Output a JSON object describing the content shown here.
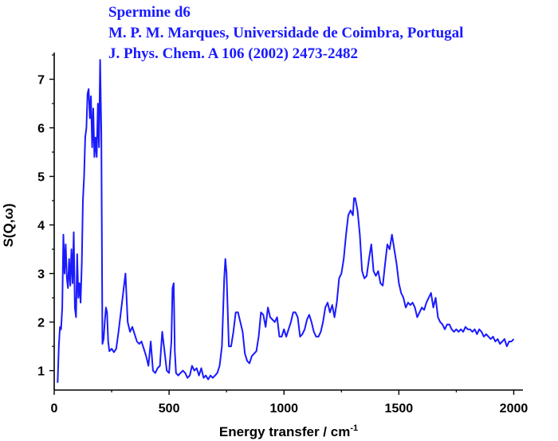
{
  "chart_data": {
    "type": "line",
    "title": [
      "Spermine d6",
      "M. P. M. Marques, Universidade de Coimbra, Portugal",
      "J. Phys. Chem. A 106 (2002) 2473-2482"
    ],
    "xlabel": "Energy transfer / cm",
    "xlabel_sup": "-1",
    "ylabel": "S(Q,ω)",
    "xlim": [
      0,
      2040
    ],
    "ylim": [
      0.6,
      7.55
    ],
    "xticks": [
      0,
      500,
      1000,
      1500,
      2000
    ],
    "yticks": [
      1,
      2,
      3,
      4,
      5,
      6,
      7
    ],
    "grid": false,
    "line_color": "#1a1aff",
    "series": [
      {
        "x": [
          15,
          20,
          25,
          30,
          35,
          40,
          45,
          50,
          55,
          60,
          65,
          70,
          75,
          80,
          85,
          90,
          95,
          100,
          105,
          110,
          115,
          120,
          125,
          130,
          135,
          140,
          145,
          150,
          155,
          160,
          165,
          170,
          175,
          180,
          185,
          190,
          195,
          200,
          205,
          210,
          215,
          220,
          225,
          230,
          235,
          240,
          250,
          260,
          270,
          280,
          290,
          300,
          310,
          315,
          320,
          330,
          340,
          350,
          360,
          370,
          380,
          390,
          400,
          410,
          420,
          430,
          440,
          450,
          460,
          470,
          480,
          490,
          500,
          510,
          515,
          520,
          525,
          530,
          540,
          550,
          560,
          570,
          580,
          590,
          600,
          610,
          620,
          630,
          640,
          650,
          660,
          670,
          680,
          690,
          700,
          710,
          720,
          730,
          740,
          745,
          750,
          760,
          770,
          780,
          790,
          800,
          810,
          820,
          830,
          840,
          850,
          860,
          870,
          880,
          890,
          900,
          910,
          920,
          930,
          940,
          950,
          960,
          970,
          980,
          990,
          1000,
          1010,
          1020,
          1030,
          1040,
          1050,
          1060,
          1070,
          1080,
          1090,
          1100,
          1110,
          1120,
          1130,
          1140,
          1150,
          1160,
          1170,
          1180,
          1190,
          1200,
          1210,
          1220,
          1230,
          1240,
          1250,
          1260,
          1270,
          1280,
          1290,
          1300,
          1305,
          1310,
          1320,
          1330,
          1340,
          1350,
          1360,
          1370,
          1380,
          1390,
          1400,
          1410,
          1420,
          1430,
          1440,
          1450,
          1460,
          1470,
          1480,
          1490,
          1500,
          1510,
          1520,
          1530,
          1540,
          1550,
          1560,
          1570,
          1580,
          1590,
          1600,
          1610,
          1620,
          1630,
          1640,
          1650,
          1660,
          1670,
          1680,
          1690,
          1700,
          1710,
          1720,
          1730,
          1740,
          1750,
          1760,
          1770,
          1780,
          1790,
          1800,
          1810,
          1820,
          1830,
          1840,
          1850,
          1860,
          1870,
          1880,
          1890,
          1900,
          1910,
          1920,
          1930,
          1940,
          1950,
          1960,
          1970,
          1980,
          1990,
          2000
        ],
        "y": [
          0.75,
          1.5,
          1.9,
          1.85,
          2.3,
          3.8,
          3.0,
          3.6,
          2.9,
          2.7,
          3.3,
          2.75,
          3.5,
          2.8,
          3.85,
          2.3,
          2.1,
          3.4,
          2.5,
          2.8,
          2.4,
          3.2,
          4.5,
          5.0,
          5.8,
          6.0,
          6.7,
          6.8,
          6.2,
          6.65,
          5.6,
          6.4,
          5.4,
          5.8,
          5.4,
          6.5,
          5.6,
          7.4,
          5.9,
          1.55,
          1.65,
          2.0,
          2.3,
          2.2,
          1.6,
          1.4,
          1.45,
          1.38,
          1.45,
          1.8,
          2.2,
          2.6,
          3.0,
          2.5,
          2.0,
          1.8,
          1.9,
          1.75,
          1.6,
          1.55,
          1.6,
          1.45,
          1.3,
          1.1,
          1.6,
          1.0,
          0.95,
          1.05,
          1.1,
          1.8,
          1.4,
          1.0,
          0.95,
          1.6,
          2.7,
          2.8,
          1.4,
          0.95,
          0.9,
          0.95,
          1.0,
          0.95,
          0.85,
          0.9,
          1.1,
          1.0,
          1.05,
          0.9,
          1.05,
          0.85,
          0.9,
          0.82,
          0.9,
          0.85,
          0.9,
          0.95,
          1.1,
          1.5,
          2.9,
          3.3,
          3.0,
          1.5,
          1.5,
          1.8,
          2.2,
          2.2,
          2.0,
          1.8,
          1.35,
          1.2,
          1.15,
          1.3,
          1.35,
          1.4,
          1.7,
          2.2,
          2.15,
          1.9,
          2.3,
          2.1,
          2.05,
          2.0,
          2.1,
          1.7,
          1.7,
          1.85,
          1.7,
          1.85,
          2.0,
          2.2,
          2.2,
          2.1,
          1.7,
          1.75,
          1.85,
          2.05,
          2.15,
          2.0,
          1.8,
          1.7,
          1.7,
          1.8,
          2.0,
          2.3,
          2.4,
          2.2,
          2.35,
          2.1,
          2.4,
          2.9,
          3.0,
          3.3,
          3.8,
          4.2,
          4.3,
          4.2,
          4.55,
          4.55,
          4.3,
          3.8,
          3.05,
          2.9,
          2.95,
          3.3,
          3.6,
          3.05,
          2.95,
          3.05,
          2.8,
          2.75,
          3.2,
          3.6,
          3.5,
          3.8,
          3.5,
          3.2,
          2.8,
          2.6,
          2.5,
          2.3,
          2.4,
          2.35,
          2.4,
          2.3,
          2.1,
          2.2,
          2.3,
          2.25,
          2.4,
          2.5,
          2.6,
          2.3,
          2.5,
          2.1,
          2.0,
          1.95,
          1.85,
          1.95,
          1.95,
          1.85,
          1.8,
          1.85,
          1.8,
          1.85,
          1.8,
          1.9,
          1.85,
          1.85,
          1.8,
          1.85,
          1.75,
          1.85,
          1.8,
          1.7,
          1.75,
          1.7,
          1.65,
          1.7,
          1.6,
          1.65,
          1.55,
          1.6,
          1.65,
          1.5,
          1.6,
          1.6,
          1.65
        ]
      }
    ]
  }
}
